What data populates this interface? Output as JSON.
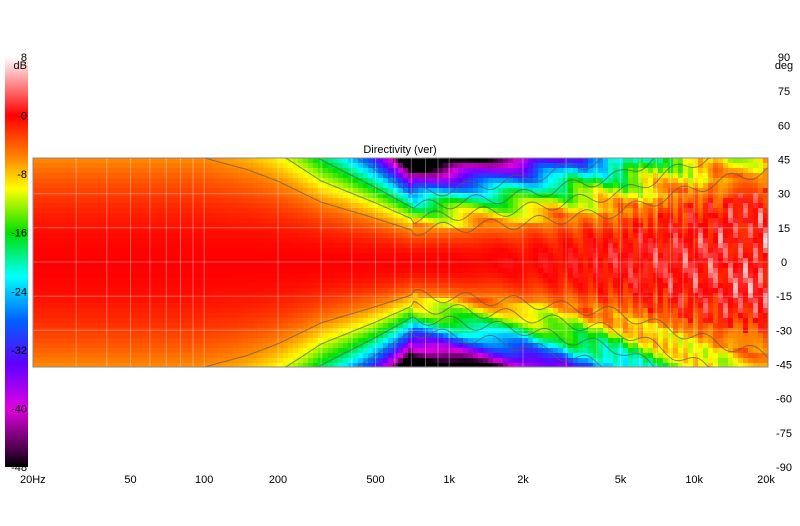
{
  "chart_data": {
    "type": "heatmap",
    "title": "Directivity (ver)",
    "x_scale": "log",
    "x_range": [
      20,
      20000
    ],
    "x_ticks": [
      {
        "value": 20,
        "label": "20Hz"
      },
      {
        "value": 50,
        "label": "50"
      },
      {
        "value": 100,
        "label": "100"
      },
      {
        "value": 200,
        "label": "200"
      },
      {
        "value": 500,
        "label": "500"
      },
      {
        "value": 1000,
        "label": "1k"
      },
      {
        "value": 2000,
        "label": "2k"
      },
      {
        "value": 5000,
        "label": "5k"
      },
      {
        "value": 10000,
        "label": "10k"
      },
      {
        "value": 20000,
        "label": "20k"
      }
    ],
    "y_unit": "deg",
    "y_axis_range": [
      -90,
      90
    ],
    "y_data_range": [
      -45,
      45
    ],
    "y_ticks": [
      90,
      75,
      60,
      45,
      30,
      15,
      0,
      -15,
      -30,
      -45,
      -60,
      -75,
      -90
    ],
    "color_unit": "dB",
    "color_range": [
      -48,
      8
    ],
    "color_ticks": [
      8,
      0,
      -8,
      -16,
      -24,
      -32,
      -40,
      -48
    ],
    "colorscale": [
      [
        8,
        "#ffffff"
      ],
      [
        4,
        "#ff8080"
      ],
      [
        0,
        "#ff0000"
      ],
      [
        -6,
        "#ff8c00"
      ],
      [
        -10,
        "#ffff00"
      ],
      [
        -16,
        "#00e000"
      ],
      [
        -22,
        "#00ffff"
      ],
      [
        -28,
        "#0060ff"
      ],
      [
        -34,
        "#6000ff"
      ],
      [
        -40,
        "#e000e0"
      ],
      [
        -46,
        "#400040"
      ],
      [
        -48,
        "#000000"
      ]
    ],
    "grid": true,
    "contours": true,
    "beamwidth_minus6dB_deg": [
      [
        20,
        45
      ],
      [
        100,
        45
      ],
      [
        150,
        40
      ],
      [
        200,
        35
      ],
      [
        300,
        26
      ],
      [
        500,
        19
      ],
      [
        700,
        14
      ],
      [
        1000,
        15
      ],
      [
        2000,
        17
      ],
      [
        5000,
        22
      ],
      [
        10000,
        32
      ],
      [
        20000,
        40
      ]
    ]
  }
}
